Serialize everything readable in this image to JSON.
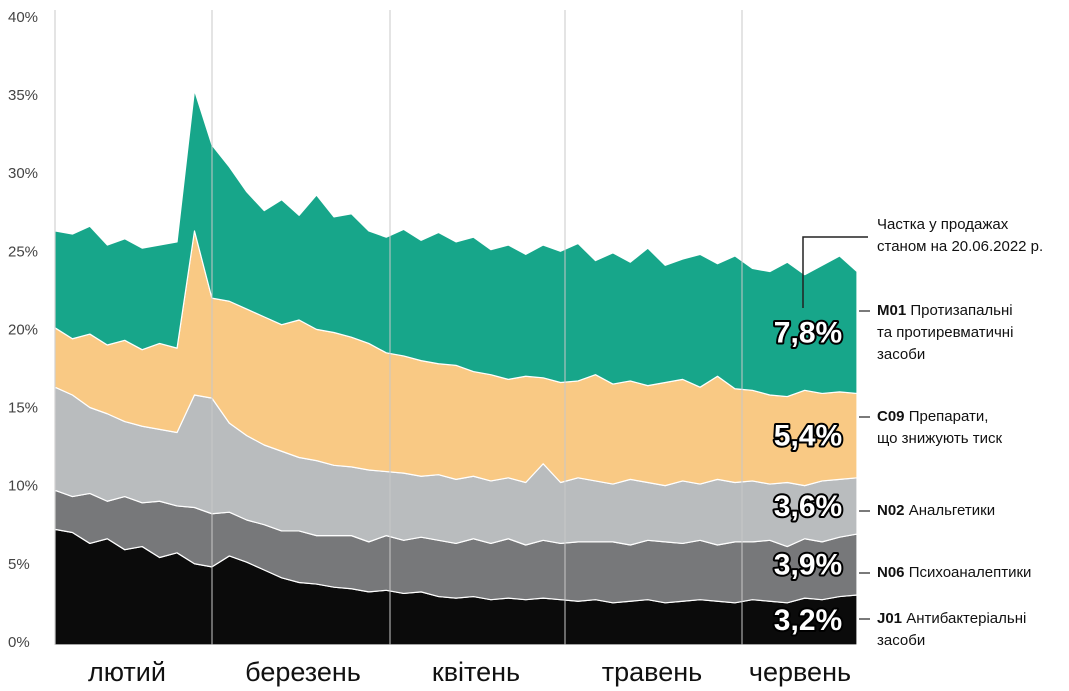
{
  "chart_data": {
    "type": "stacked_area",
    "months": [
      "лютий",
      "березень",
      "квітень",
      "травень",
      "червень"
    ],
    "annotation": [
      "Частка у продажах",
      "станом на 20.06.2022 р."
    ],
    "ylim": [
      0,
      40
    ],
    "yticks": [
      {
        "value": 0,
        "label": "0%"
      },
      {
        "value": 5,
        "label": "5%"
      },
      {
        "value": 10,
        "label": "10%"
      },
      {
        "value": 15,
        "label": "15%"
      },
      {
        "value": 20,
        "label": "20%"
      },
      {
        "value": 25,
        "label": "25%"
      },
      {
        "value": 30,
        "label": "30%"
      },
      {
        "value": 35,
        "label": "35%"
      },
      {
        "value": 40,
        "label": "40%"
      }
    ],
    "series": [
      {
        "name": "J01",
        "description": [
          "Антибактеріальні",
          "засоби"
        ],
        "color": "#0b0b0b",
        "end_label": "3,2%",
        "values": [
          7.4,
          7.2,
          6.5,
          6.8,
          6.1,
          6.3,
          5.6,
          5.9,
          5.2,
          5.0,
          5.7,
          5.3,
          4.8,
          4.3,
          4.0,
          3.9,
          3.7,
          3.6,
          3.4,
          3.5,
          3.3,
          3.4,
          3.1,
          3.0,
          3.1,
          2.9,
          3.0,
          2.9,
          3.0,
          2.9,
          2.8,
          2.9,
          2.7,
          2.8,
          2.9,
          2.7,
          2.8,
          2.9,
          2.8,
          2.7,
          2.9,
          2.8,
          2.7,
          3.0,
          2.9,
          3.1,
          3.2
        ]
      },
      {
        "name": "N06",
        "description": [
          "Психоаналептики"
        ],
        "color": "#77787a",
        "end_label": "3,9%",
        "values": [
          2.5,
          2.3,
          3.2,
          2.4,
          3.4,
          2.8,
          3.6,
          3.0,
          3.6,
          3.4,
          2.8,
          2.7,
          2.9,
          3.0,
          3.3,
          3.1,
          3.3,
          3.4,
          3.2,
          3.5,
          3.4,
          3.5,
          3.6,
          3.5,
          3.7,
          3.6,
          3.8,
          3.5,
          3.7,
          3.6,
          3.8,
          3.7,
          3.9,
          3.6,
          3.8,
          3.9,
          3.7,
          3.8,
          3.6,
          3.9,
          3.7,
          3.9,
          3.6,
          3.8,
          3.7,
          3.8,
          3.9
        ]
      },
      {
        "name": "N02",
        "description": [
          "Анальгетики"
        ],
        "color": "#b9bcbe",
        "end_label": "3,6%",
        "values": [
          6.6,
          6.5,
          5.5,
          5.6,
          4.8,
          4.9,
          4.6,
          4.7,
          7.2,
          7.4,
          5.7,
          5.4,
          5.1,
          5.1,
          4.7,
          4.8,
          4.5,
          4.4,
          4.6,
          4.1,
          4.3,
          3.9,
          4.2,
          4.1,
          4.0,
          4.0,
          3.9,
          4.0,
          4.9,
          3.9,
          4.1,
          3.9,
          3.7,
          4.2,
          3.7,
          3.6,
          4.0,
          3.6,
          4.2,
          3.8,
          3.9,
          3.6,
          4.1,
          3.4,
          3.9,
          3.7,
          3.6
        ]
      },
      {
        "name": "C09",
        "description": [
          "Препарати,",
          "що знижують тиск"
        ],
        "color": "#f9c984",
        "end_label": "5,4%",
        "values": [
          3.8,
          3.6,
          4.7,
          4.4,
          5.2,
          4.9,
          5.5,
          5.4,
          10.5,
          6.4,
          7.8,
          8.1,
          8.2,
          8.1,
          8.8,
          8.4,
          8.5,
          8.3,
          8.1,
          7.6,
          7.5,
          7.4,
          7.1,
          7.3,
          6.7,
          6.8,
          6.3,
          6.8,
          5.5,
          6.4,
          6.2,
          6.8,
          6.4,
          6.3,
          6.2,
          6.6,
          6.5,
          6.2,
          6.6,
          6.0,
          5.8,
          5.7,
          5.5,
          6.1,
          5.6,
          5.6,
          5.4
        ]
      },
      {
        "name": "M01",
        "description": [
          "Протизапальні",
          "та протиревматичні",
          "засоби"
        ],
        "color": "#17a68a",
        "end_label": "7,8%",
        "values": [
          6.2,
          6.7,
          6.9,
          6.4,
          6.5,
          6.5,
          6.3,
          6.8,
          9.0,
          9.8,
          8.6,
          7.5,
          6.8,
          8.0,
          6.7,
          8.6,
          7.4,
          7.9,
          7.2,
          7.4,
          8.1,
          7.7,
          8.4,
          7.9,
          8.6,
          8.0,
          8.6,
          7.8,
          8.5,
          8.4,
          8.8,
          7.3,
          8.4,
          7.6,
          8.8,
          7.5,
          7.7,
          8.5,
          7.2,
          8.5,
          7.8,
          7.9,
          8.6,
          7.4,
          8.2,
          8.7,
          7.8
        ]
      }
    ]
  }
}
